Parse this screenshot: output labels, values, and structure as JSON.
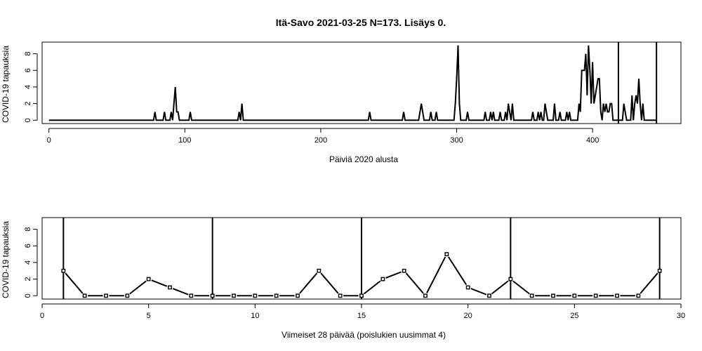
{
  "title": "Itä-Savo 2021-03-25 N=173. Lisäys 0.",
  "chart_data": [
    {
      "type": "line",
      "xlabel": "Päiviä 2020 alusta",
      "ylabel": "COVID-19 tapauksia",
      "xlim": [
        -5,
        465
      ],
      "ylim": [
        -0.4,
        9.4
      ],
      "xticks": [
        0,
        100,
        200,
        300,
        400
      ],
      "yticks": [
        0,
        2,
        4,
        6,
        8
      ],
      "vlines": [
        419,
        447
      ],
      "points": [
        [
          0,
          0
        ],
        [
          77,
          0
        ],
        [
          78,
          1
        ],
        [
          79,
          0
        ],
        [
          84,
          0
        ],
        [
          85,
          1
        ],
        [
          86,
          0
        ],
        [
          89,
          0
        ],
        [
          90,
          1
        ],
        [
          91,
          0
        ],
        [
          92,
          2
        ],
        [
          93,
          4
        ],
        [
          94,
          1
        ],
        [
          95,
          1
        ],
        [
          96,
          0
        ],
        [
          103,
          0
        ],
        [
          104,
          1
        ],
        [
          105,
          0
        ],
        [
          139,
          0
        ],
        [
          140,
          1
        ],
        [
          141,
          0
        ],
        [
          142,
          2
        ],
        [
          143,
          0
        ],
        [
          235,
          0
        ],
        [
          236,
          1
        ],
        [
          237,
          0
        ],
        [
          260,
          0
        ],
        [
          261,
          1
        ],
        [
          262,
          0
        ],
        [
          272,
          0
        ],
        [
          273,
          1
        ],
        [
          274,
          2
        ],
        [
          275,
          1
        ],
        [
          276,
          0
        ],
        [
          280,
          0
        ],
        [
          281,
          1
        ],
        [
          282,
          0
        ],
        [
          284,
          0
        ],
        [
          285,
          1
        ],
        [
          286,
          0
        ],
        [
          298,
          0
        ],
        [
          299,
          2
        ],
        [
          300,
          5
        ],
        [
          301,
          9
        ],
        [
          302,
          2
        ],
        [
          303,
          0
        ],
        [
          307,
          0
        ],
        [
          308,
          1
        ],
        [
          309,
          0
        ],
        [
          320,
          0
        ],
        [
          321,
          1
        ],
        [
          322,
          0
        ],
        [
          324,
          0
        ],
        [
          325,
          1
        ],
        [
          326,
          0
        ],
        [
          327,
          1
        ],
        [
          328,
          0
        ],
        [
          331,
          0
        ],
        [
          332,
          1
        ],
        [
          333,
          0
        ],
        [
          335,
          0
        ],
        [
          336,
          1
        ],
        [
          337,
          0
        ],
        [
          338,
          2
        ],
        [
          339,
          1
        ],
        [
          340,
          0
        ],
        [
          341,
          2
        ],
        [
          342,
          0
        ],
        [
          355,
          0
        ],
        [
          356,
          1
        ],
        [
          357,
          0
        ],
        [
          359,
          0
        ],
        [
          360,
          1
        ],
        [
          361,
          0
        ],
        [
          362,
          1
        ],
        [
          363,
          0
        ],
        [
          364,
          0
        ],
        [
          365,
          2
        ],
        [
          366,
          1
        ],
        [
          367,
          0
        ],
        [
          371,
          0
        ],
        [
          372,
          2
        ],
        [
          373,
          0
        ],
        [
          375,
          0
        ],
        [
          376,
          1
        ],
        [
          377,
          0
        ],
        [
          380,
          0
        ],
        [
          381,
          1
        ],
        [
          382,
          0
        ],
        [
          383,
          1
        ],
        [
          384,
          0
        ],
        [
          389,
          0
        ],
        [
          390,
          2
        ],
        [
          391,
          1
        ],
        [
          392,
          6
        ],
        [
          393,
          6
        ],
        [
          394,
          6
        ],
        [
          395,
          8
        ],
        [
          396,
          3
        ],
        [
          397,
          9
        ],
        [
          398,
          6
        ],
        [
          399,
          2
        ],
        [
          400,
          7
        ],
        [
          401,
          2
        ],
        [
          402,
          3
        ],
        [
          403,
          4
        ],
        [
          404,
          5
        ],
        [
          405,
          5
        ],
        [
          406,
          1
        ],
        [
          407,
          0
        ],
        [
          408,
          2
        ],
        [
          409,
          1
        ],
        [
          410,
          2
        ],
        [
          411,
          1
        ],
        [
          412,
          1
        ],
        [
          413,
          2
        ],
        [
          414,
          2
        ],
        [
          415,
          0
        ],
        [
          419,
          0
        ],
        [
          420,
          0
        ],
        [
          422,
          0
        ],
        [
          423,
          2
        ],
        [
          424,
          1
        ],
        [
          425,
          0
        ],
        [
          428,
          0
        ],
        [
          429,
          3
        ],
        [
          430,
          0
        ],
        [
          431,
          2
        ],
        [
          432,
          3
        ],
        [
          433,
          2
        ],
        [
          434,
          5
        ],
        [
          435,
          2
        ],
        [
          436,
          0
        ],
        [
          437,
          2
        ],
        [
          438,
          0
        ],
        [
          447,
          0
        ]
      ]
    },
    {
      "type": "line",
      "xlabel": "Viimeiset 28 päivää (poislukien uusimmat 4)",
      "ylabel": "COVID-19 tapauksia",
      "xlim": [
        0,
        30
      ],
      "ylim": [
        -0.4,
        9.4
      ],
      "xticks": [
        0,
        5,
        10,
        15,
        20,
        25,
        30
      ],
      "yticks": [
        0,
        2,
        4,
        6,
        8
      ],
      "vlines": [
        1,
        8,
        15,
        22,
        29
      ],
      "x": [
        1,
        2,
        3,
        4,
        5,
        6,
        7,
        8,
        9,
        10,
        11,
        12,
        13,
        14,
        15,
        16,
        17,
        18,
        19,
        20,
        21,
        22,
        23,
        24,
        25,
        26,
        27,
        28,
        29
      ],
      "y": [
        3,
        0,
        0,
        0,
        2,
        1,
        0,
        0,
        0,
        0,
        0,
        0,
        3,
        0,
        0,
        2,
        3,
        0,
        5,
        1,
        0,
        2,
        0,
        0,
        0,
        0,
        0,
        0,
        3
      ]
    }
  ]
}
